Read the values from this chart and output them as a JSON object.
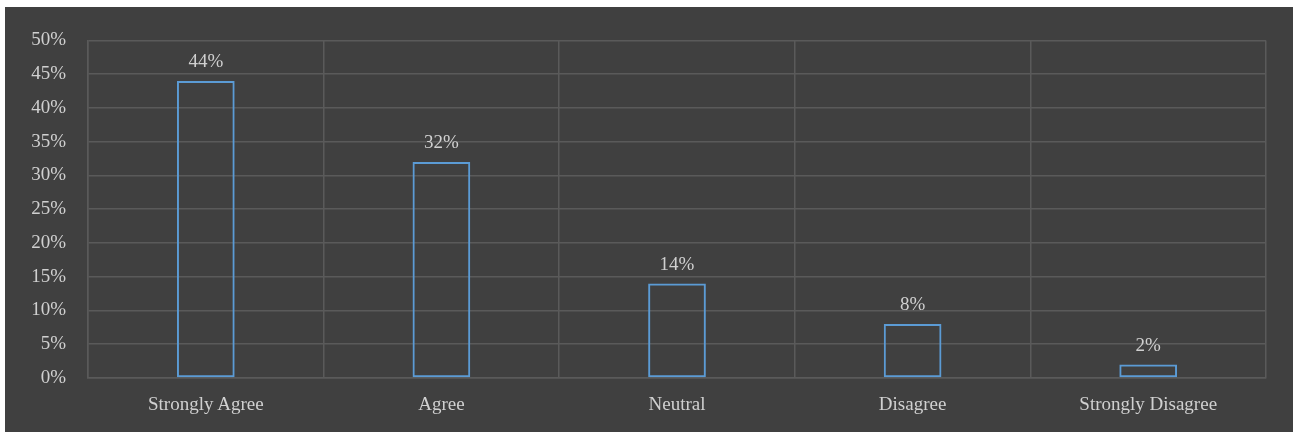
{
  "chart_data": {
    "type": "bar",
    "categories": [
      "Strongly Agree",
      "Agree",
      "Neutral",
      "Disagree",
      "Strongly Disagree"
    ],
    "values": [
      44,
      32,
      14,
      8,
      2
    ],
    "value_labels": [
      "44%",
      "32%",
      "14%",
      "8%",
      "2%"
    ],
    "color": "#5b9bd5",
    "ylim": [
      0,
      50
    ],
    "yticks": [
      {
        "value": 0,
        "label": "0%"
      },
      {
        "value": 5,
        "label": "5%"
      },
      {
        "value": 10,
        "label": "10%"
      },
      {
        "value": 15,
        "label": "15%"
      },
      {
        "value": 20,
        "label": "20%"
      },
      {
        "value": 25,
        "label": "25%"
      },
      {
        "value": 30,
        "label": "30%"
      },
      {
        "value": 35,
        "label": "35%"
      },
      {
        "value": 40,
        "label": "40%"
      },
      {
        "value": 45,
        "label": "45%"
      },
      {
        "value": 50,
        "label": "50%"
      }
    ],
    "grid": true
  }
}
